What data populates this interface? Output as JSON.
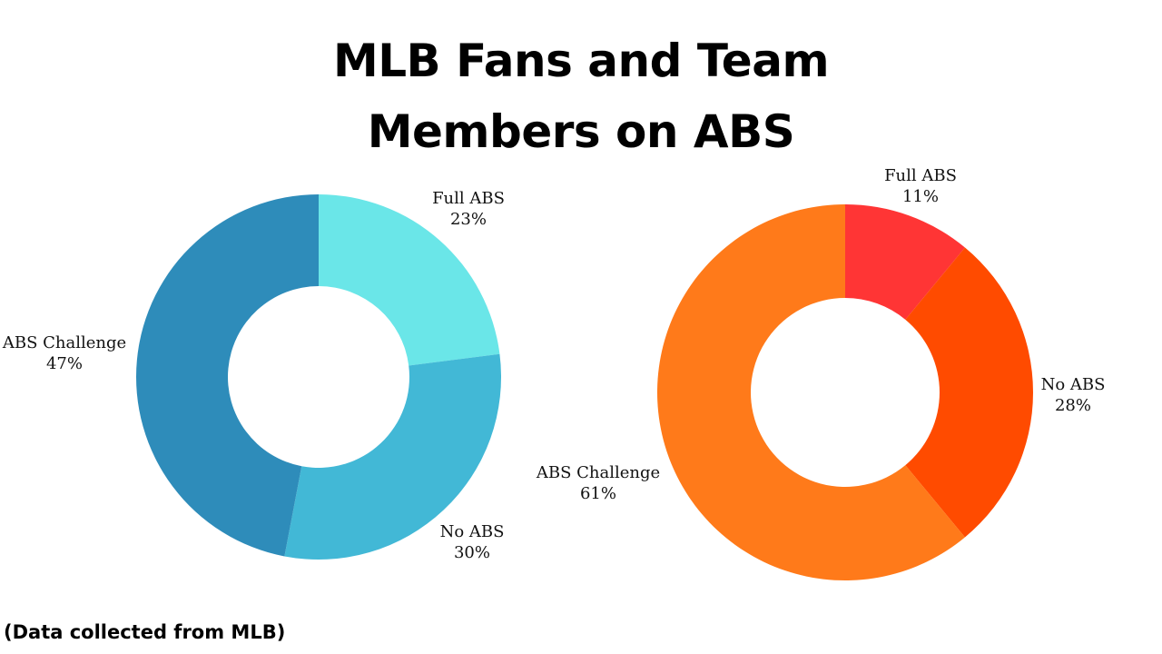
{
  "title_lines": [
    "MLB Fans and Team",
    "Members on ABS"
  ],
  "source_note": "(Data collected from MLB)",
  "chart_data": [
    {
      "type": "pie",
      "donut": true,
      "slices": [
        {
          "label": "Full ABS",
          "value": 23,
          "value_label": "23%",
          "color": "#6ae6e8"
        },
        {
          "label": "No ABS",
          "value": 30,
          "value_label": "30%",
          "color": "#42b8d6"
        },
        {
          "label": "ABS Challenge",
          "value": 47,
          "value_label": "47%",
          "color": "#2e8cba"
        }
      ]
    },
    {
      "type": "pie",
      "donut": true,
      "slices": [
        {
          "label": "Full ABS",
          "value": 11,
          "value_label": "11%",
          "color": "#ff3535"
        },
        {
          "label": "No ABS",
          "value": 28,
          "value_label": "28%",
          "color": "#ff4b00"
        },
        {
          "label": "ABS Challenge",
          "value": 61,
          "value_label": "61%",
          "color": "#ff7a1a"
        }
      ]
    }
  ]
}
